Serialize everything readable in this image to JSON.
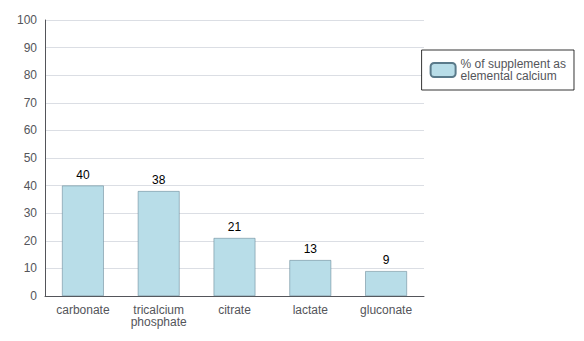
{
  "chart_data": {
    "type": "bar",
    "categories": [
      "carbonate",
      "tricalcium\nphosphate",
      "citrate",
      "lactate",
      "gluconate"
    ],
    "series": [
      {
        "name": "% of supplement as\nelemental calcium",
        "color": "#b8dde8",
        "values": [
          40,
          38,
          21,
          13,
          9
        ]
      }
    ],
    "ylim": [
      0,
      100
    ],
    "yticks": [
      0,
      10,
      20,
      30,
      40,
      50,
      60,
      70,
      80,
      90,
      100
    ],
    "grid": true,
    "legend": "right",
    "data_labels": true
  }
}
